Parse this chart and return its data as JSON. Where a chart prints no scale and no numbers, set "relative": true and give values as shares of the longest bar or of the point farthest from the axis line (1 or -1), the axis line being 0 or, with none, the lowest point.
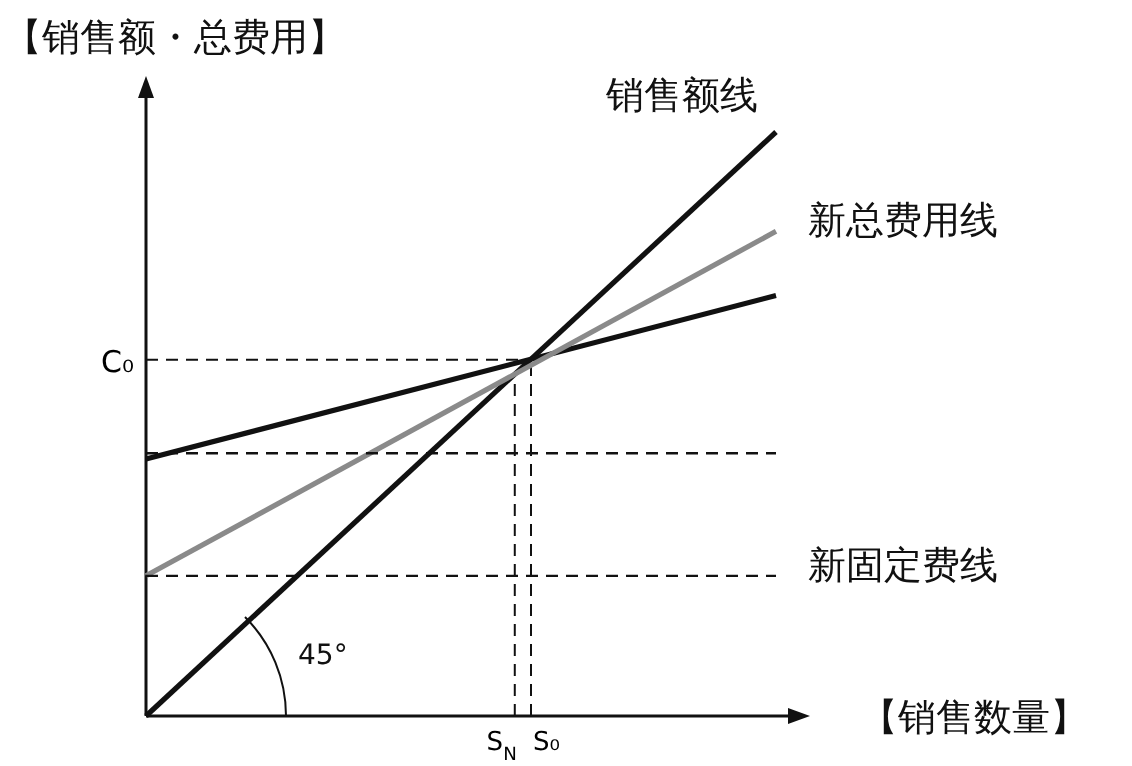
{
  "chart_data": {
    "type": "line",
    "relative": true,
    "ylabel": "【销售额・总费用】",
    "xlabel": "【销售数量】",
    "categories": [
      null,
      null
    ],
    "grid": false,
    "legend": false,
    "marker": "none",
    "series": [
      {
        "name": "销售额线",
        "color": "#111111",
        "values": [
          0,
          1.0
        ]
      },
      {
        "color": "#111111",
        "values": [
          0.44,
          0.72
        ]
      },
      {
        "name": "新总费用线",
        "color": "#8a8a8a",
        "values": [
          0.24,
          0.83
        ]
      },
      {
        "color": "#111111",
        "values": [
          0.45,
          0.45
        ],
        "line_style": "dashed"
      },
      {
        "name": "新固定费线",
        "color": "#111111",
        "values": [
          0.24,
          0.24
        ],
        "line_style": "dashed"
      }
    ],
    "ref_lines": [
      {
        "axis": "y",
        "value": 0.61,
        "label": "C₀",
        "line_style": "dashed"
      }
    ],
    "annotations": [
      "45°",
      "S$_{N}$",
      "S₀"
    ]
  }
}
